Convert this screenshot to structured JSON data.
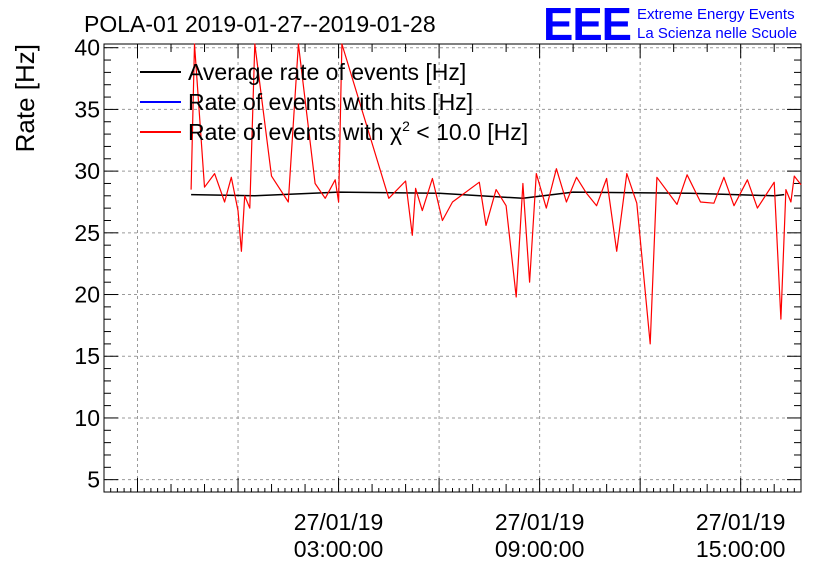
{
  "chart_data": {
    "type": "line",
    "title": "POLA-01 2019-01-27--2019-01-28",
    "ylabel": "Rate [Hz]",
    "xlabel": "",
    "x_unit": "hours since 2019-01-27 00:00:00",
    "xlim": [
      -4.0,
      16.8
    ],
    "ylim": [
      4,
      40.3
    ],
    "grid": true,
    "y_ticks": [
      5,
      10,
      15,
      20,
      25,
      30,
      35,
      40
    ],
    "x_ticks": [
      {
        "x": 3,
        "date": "27/01/19",
        "time": "03:00:00"
      },
      {
        "x": 9,
        "date": "27/01/19",
        "time": "09:00:00"
      },
      {
        "x": 15,
        "date": "27/01/19",
        "time": "15:00:00"
      }
    ],
    "legend_position": "top-left",
    "series": [
      {
        "name": "Average rate of events [Hz]",
        "color": "#000000",
        "x": [
          -1.4,
          0.5,
          3.0,
          6.0,
          8.5,
          10.0,
          13.5,
          16.0,
          16.3
        ],
        "y": [
          28.1,
          28.0,
          28.3,
          28.2,
          27.8,
          28.3,
          28.2,
          28.0,
          28.1
        ]
      },
      {
        "name": "Rate of events with hits [Hz]",
        "color": "#0000ff",
        "x": [],
        "y": []
      },
      {
        "name": "Rate of events with χ",
        "name_superscript": "2",
        "name_suffix": " < 10.0 [Hz]",
        "color": "#ff0000",
        "x": [
          -1.4,
          -1.3,
          -1.0,
          -0.7,
          -0.4,
          -0.2,
          0.0,
          0.1,
          0.2,
          0.35,
          0.5,
          1.0,
          1.5,
          1.8,
          2.3,
          2.6,
          2.9,
          3.0,
          3.1,
          4.5,
          5.0,
          5.2,
          5.3,
          5.5,
          5.8,
          6.1,
          6.4,
          7.2,
          7.4,
          7.7,
          8.0,
          8.3,
          8.5,
          8.7,
          8.9,
          9.2,
          9.5,
          9.8,
          10.1,
          10.4,
          10.7,
          11.0,
          11.3,
          11.6,
          11.9,
          12.3,
          12.5,
          13.1,
          13.4,
          13.8,
          14.2,
          14.5,
          14.8,
          15.2,
          15.5,
          16.0,
          16.2,
          16.35,
          16.5,
          16.6,
          16.8
        ],
        "y": [
          28.5,
          40.3,
          28.7,
          29.8,
          27.5,
          29.5,
          26.8,
          23.5,
          28.0,
          27.0,
          40.3,
          29.6,
          27.5,
          40.3,
          29.0,
          27.8,
          29.3,
          27.5,
          40.3,
          27.8,
          29.2,
          24.8,
          28.6,
          26.8,
          29.4,
          26.0,
          27.5,
          29.1,
          25.6,
          28.5,
          27.2,
          19.8,
          29.0,
          21.0,
          29.8,
          27.0,
          30.2,
          27.5,
          29.5,
          28.2,
          27.2,
          29.4,
          23.5,
          29.8,
          27.4,
          16.0,
          29.5,
          27.3,
          29.7,
          27.5,
          27.4,
          29.5,
          27.2,
          29.3,
          27.0,
          29.1,
          18.0,
          28.5,
          27.5,
          29.6,
          28.9
        ]
      }
    ]
  },
  "header": {
    "logo_text": "EEE",
    "org_line1": "Extreme Energy Events",
    "org_line2": "La Scienza nelle Scuole"
  },
  "colors": {
    "logo_blue": "#0000ff",
    "grid": "#9a9a9a"
  }
}
